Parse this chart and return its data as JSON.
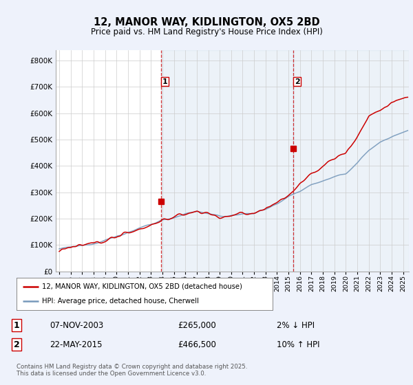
{
  "title": "12, MANOR WAY, KIDLINGTON, OX5 2BD",
  "subtitle": "Price paid vs. HM Land Registry's House Price Index (HPI)",
  "ytick_values": [
    0,
    100000,
    200000,
    300000,
    400000,
    500000,
    600000,
    700000,
    800000
  ],
  "ylim": [
    0,
    840000
  ],
  "xlim_start": 1994.7,
  "xlim_end": 2025.5,
  "x_ticks": [
    1995,
    1996,
    1997,
    1998,
    1999,
    2000,
    2001,
    2002,
    2003,
    2004,
    2005,
    2006,
    2007,
    2008,
    2009,
    2010,
    2011,
    2012,
    2013,
    2014,
    2015,
    2016,
    2017,
    2018,
    2019,
    2020,
    2021,
    2022,
    2023,
    2024,
    2025
  ],
  "background_color": "#eef2fb",
  "plot_bg_color": "#ffffff",
  "grid_color": "#cccccc",
  "red_line_color": "#cc0000",
  "blue_line_color": "#7799bb",
  "vline_color": "#cc0000",
  "marker1_x": 2003.856,
  "marker1_y": 265000,
  "marker1_label": "1",
  "marker2_x": 2015.385,
  "marker2_y": 466500,
  "marker2_label": "2",
  "legend_line1": "12, MANOR WAY, KIDLINGTON, OX5 2BD (detached house)",
  "legend_line2": "HPI: Average price, detached house, Cherwell",
  "annotation1_num": "1",
  "annotation1_date": "07-NOV-2003",
  "annotation1_price": "£265,000",
  "annotation1_hpi": "2% ↓ HPI",
  "annotation2_num": "2",
  "annotation2_date": "22-MAY-2015",
  "annotation2_price": "£466,500",
  "annotation2_hpi": "10% ↑ HPI",
  "footer": "Contains HM Land Registry data © Crown copyright and database right 2025.\nThis data is licensed under the Open Government Licence v3.0."
}
